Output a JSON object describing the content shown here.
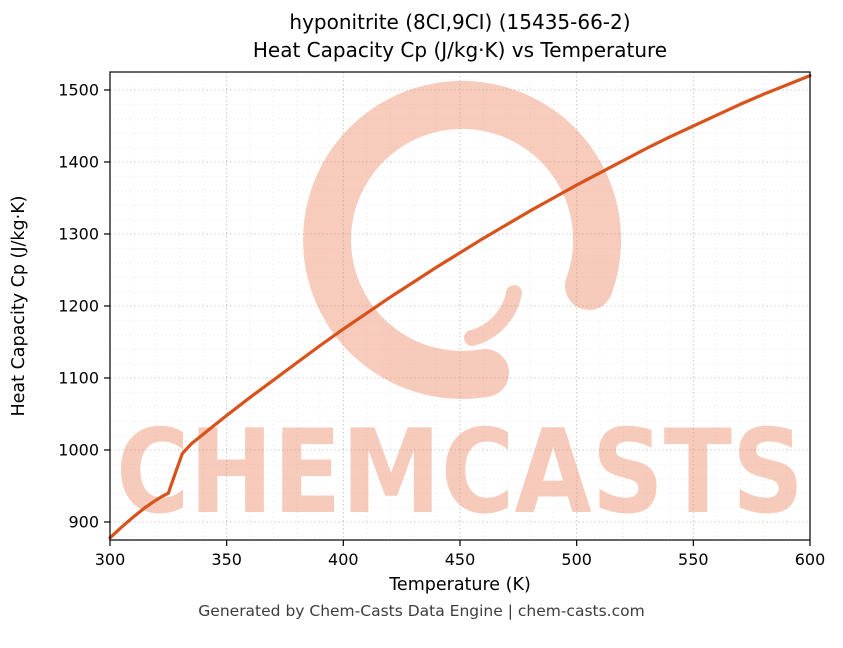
{
  "title_line1": "hyponitrite (8CI,9CI) (15435-66-2)",
  "title_line2": "Heat Capacity Cp (J/kg·K) vs Temperature",
  "footer": "Generated by Chem-Casts Data Engine | chem-casts.com",
  "watermark_text": "CHEMCASTS",
  "colors": {
    "line": "#d9521c",
    "watermark": "#ee8561",
    "grid_major": "#c9c9c9",
    "grid_minor": "#e7e7e7",
    "axis": "#000000",
    "footer_text": "#3d3d3d"
  },
  "chart_data": {
    "type": "line",
    "title": "hyponitrite (8CI,9CI) (15435-66-2) — Heat Capacity Cp (J/kg·K) vs Temperature",
    "xlabel": "Temperature (K)",
    "ylabel": "Heat Capacity Cp (J/kg·K)",
    "xlim": [
      300,
      600
    ],
    "ylim": [
      875,
      1525
    ],
    "xticks": [
      300,
      350,
      400,
      450,
      500,
      550,
      600
    ],
    "yticks": [
      900,
      1000,
      1100,
      1200,
      1300,
      1400,
      1500
    ],
    "grid": true,
    "legend": "none",
    "series": [
      {
        "name": "Heat Capacity Cp",
        "x": [
          300,
          305,
          310,
          315,
          320,
          322,
          325,
          328,
          331,
          335,
          340,
          345,
          350,
          360,
          370,
          380,
          390,
          400,
          410,
          420,
          430,
          440,
          450,
          460,
          470,
          480,
          490,
          500,
          510,
          520,
          530,
          540,
          550,
          560,
          570,
          580,
          590,
          600
        ],
        "y": [
          878,
          893,
          907,
          920,
          931,
          935,
          940,
          968,
          995,
          1009,
          1022,
          1035,
          1048,
          1073,
          1097,
          1121,
          1145,
          1168,
          1190,
          1212,
          1233,
          1254,
          1274,
          1294,
          1313,
          1332,
          1350,
          1368,
          1385,
          1402,
          1419,
          1435,
          1450,
          1465,
          1480,
          1494,
          1507,
          1520
        ]
      }
    ]
  }
}
